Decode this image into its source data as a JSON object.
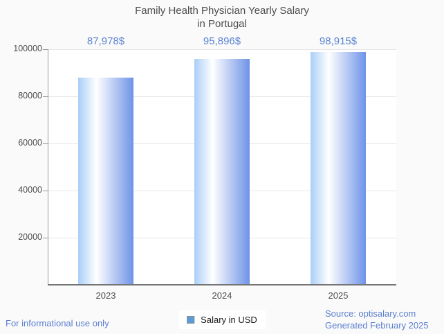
{
  "chart_data": {
    "type": "bar",
    "title": "Family Health Physician Yearly Salary in Portugal",
    "categories": [
      "2023",
      "2024",
      "2025"
    ],
    "series": [
      {
        "name": "Salary in USD",
        "values": [
          87978,
          95896,
          98915
        ]
      }
    ],
    "value_labels": [
      "87,978$",
      "95,896$",
      "98,915$"
    ],
    "xlabel": "",
    "ylabel": "",
    "ylim": [
      0,
      100000
    ],
    "yticks": [
      20000,
      40000,
      60000,
      80000,
      100000
    ],
    "ytick_labels": [
      "20000",
      "40000",
      "60000",
      "80000",
      "100000"
    ],
    "grid": true,
    "legend_position": "bottom",
    "bar_gradient": [
      "#a9cef7",
      "#ffffff",
      "#6e93e8"
    ],
    "value_label_color": "#5b84d2"
  },
  "legend": {
    "label": "Salary in USD",
    "swatch_color": "#5b9bd8"
  },
  "footer": {
    "left": "For informational use only",
    "source": "Source: optisalary.com",
    "generated": "Generated February 2025"
  },
  "colors": {
    "background": "#fafafa",
    "plot_background": "#ffffff",
    "title": "#4c4c4c",
    "axis": "#757575",
    "gridline": "#e6e6e6",
    "tick_label": "#4d4d4d",
    "footer_text": "#5b7fce"
  }
}
